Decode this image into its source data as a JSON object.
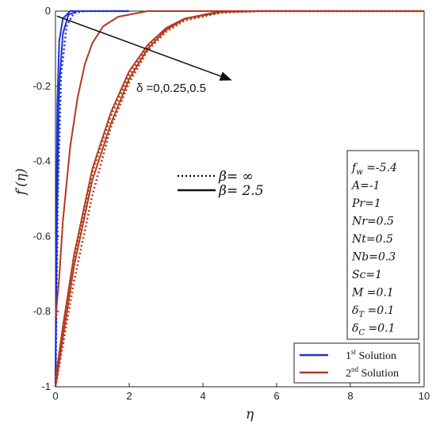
{
  "chart_data": {
    "type": "line",
    "xlabel": "η",
    "ylabel": "f′(η)",
    "xlim": [
      0,
      10
    ],
    "ylim": [
      -1,
      0
    ],
    "x_ticks": [
      "0",
      "2",
      "4",
      "6",
      "8",
      "10"
    ],
    "y_ticks": [
      "0",
      "-0.2",
      "-0.4",
      "-0.6",
      "-0.8",
      "-1"
    ],
    "grid": false,
    "series": [
      {
        "name": "1st Solution",
        "group": "first",
        "style": "solid",
        "values": [
          [
            0,
            -1
          ],
          [
            0.02,
            -0.6
          ],
          [
            0.05,
            -0.25
          ],
          [
            0.1,
            -0.08
          ],
          [
            0.2,
            -0.02
          ],
          [
            0.4,
            0
          ],
          [
            2,
            0
          ]
        ]
      },
      {
        "name": "1st Solution",
        "group": "first",
        "style": "solid",
        "values": [
          [
            0,
            -1
          ],
          [
            0.04,
            -0.55
          ],
          [
            0.1,
            -0.2
          ],
          [
            0.2,
            -0.06
          ],
          [
            0.35,
            -0.01
          ],
          [
            0.6,
            0
          ],
          [
            2,
            0
          ]
        ]
      },
      {
        "name": "1st Solution",
        "group": "first",
        "style": "dotted",
        "values": [
          [
            0,
            -1
          ],
          [
            0.06,
            -0.5
          ],
          [
            0.15,
            -0.17
          ],
          [
            0.3,
            -0.04
          ],
          [
            0.5,
            -0.005
          ],
          [
            0.8,
            0
          ],
          [
            2,
            0
          ]
        ]
      },
      {
        "name": "2nd Solution",
        "group": "second",
        "style": "solid",
        "values": [
          [
            0,
            -0.82
          ],
          [
            0.1,
            -0.71
          ],
          [
            0.2,
            -0.56
          ],
          [
            0.4,
            -0.36
          ],
          [
            0.6,
            -0.23
          ],
          [
            0.8,
            -0.14
          ],
          [
            1,
            -0.085
          ],
          [
            1.3,
            -0.04
          ],
          [
            1.7,
            -0.015
          ],
          [
            2.5,
            0
          ],
          [
            10,
            0
          ]
        ]
      },
      {
        "name": "2nd Solution",
        "group": "second",
        "style": "solid",
        "values": [
          [
            0,
            -1
          ],
          [
            0.2,
            -0.87
          ],
          [
            0.5,
            -0.68
          ],
          [
            1,
            -0.45
          ],
          [
            1.5,
            -0.3
          ],
          [
            2,
            -0.18
          ],
          [
            2.5,
            -0.1
          ],
          [
            3,
            -0.05
          ],
          [
            3.5,
            -0.02
          ],
          [
            4.5,
            0
          ],
          [
            10,
            0
          ]
        ]
      },
      {
        "name": "2nd Solution",
        "group": "second",
        "style": "dotted",
        "values": [
          [
            0,
            -1
          ],
          [
            0.2,
            -0.89
          ],
          [
            0.5,
            -0.72
          ],
          [
            1,
            -0.49
          ],
          [
            1.5,
            -0.31
          ],
          [
            2,
            -0.19
          ],
          [
            2.5,
            -0.105
          ],
          [
            3,
            -0.055
          ],
          [
            3.5,
            -0.025
          ],
          [
            4.5,
            -0.004
          ],
          [
            5.5,
            0
          ],
          [
            10,
            0
          ]
        ]
      },
      {
        "name": "2nd Solution",
        "group": "second",
        "style": "solid",
        "values": [
          [
            0,
            -0.98
          ],
          [
            0.2,
            -0.84
          ],
          [
            0.5,
            -0.65
          ],
          [
            1,
            -0.42
          ],
          [
            1.5,
            -0.27
          ],
          [
            2,
            -0.16
          ],
          [
            2.5,
            -0.09
          ],
          [
            3,
            -0.045
          ],
          [
            3.5,
            -0.02
          ],
          [
            4.5,
            -0.002
          ],
          [
            5.5,
            0
          ],
          [
            10,
            0
          ]
        ]
      },
      {
        "name": "2nd Solution",
        "group": "second",
        "style": "dotted",
        "values": [
          [
            0,
            -1
          ],
          [
            0.2,
            -0.86
          ],
          [
            0.5,
            -0.66
          ],
          [
            1,
            -0.43
          ],
          [
            1.5,
            -0.28
          ],
          [
            2,
            -0.17
          ],
          [
            2.5,
            -0.095
          ],
          [
            3,
            -0.05
          ],
          [
            3.5,
            -0.022
          ],
          [
            4.5,
            -0.003
          ],
          [
            5.5,
            0
          ],
          [
            10,
            0
          ]
        ]
      }
    ],
    "annotations": {
      "delta_label": "δ =0,0.25,0.5",
      "arrow": {
        "from": [
          0.0,
          -0.005
        ],
        "to": [
          4.8,
          -0.2
        ]
      },
      "line_styles": [
        {
          "style": "dotted",
          "label_symbol": "β",
          "label_value": "= ∞"
        },
        {
          "style": "solid",
          "label_symbol": "β",
          "label_value": "= 2.5"
        }
      ],
      "parameters": [
        "f_w =-5.4",
        "A=-1",
        "Pr=1",
        "Nr=0.5",
        "Nt=0.5",
        "Nb=0.3",
        "Sc=1",
        "M =0.1",
        "δ_T =0.1",
        "δ_C =0.1"
      ]
    },
    "legend": {
      "position": "bottom-right",
      "entries": [
        {
          "label_main": "1",
          "label_sup": "st",
          "label_rest": " Solution",
          "color": "#1f33d6"
        },
        {
          "label_main": "2",
          "label_sup": "nd",
          "label_rest": " Solution",
          "color": "#b33a1d"
        }
      ]
    },
    "colors": {
      "first": "#1f33d6",
      "second": "#b33a1d"
    }
  }
}
